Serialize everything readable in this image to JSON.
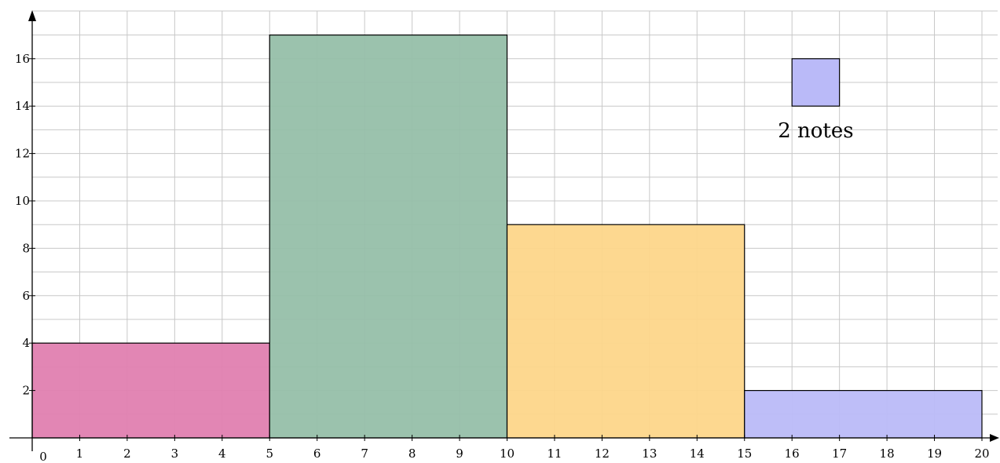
{
  "chart_data": {
    "type": "bar",
    "title": "",
    "xlabel": "",
    "ylabel": "",
    "xlim": [
      0,
      20
    ],
    "ylim": [
      0,
      17.5
    ],
    "grid": true,
    "x_ticks": [
      "0",
      "1",
      "2",
      "3",
      "4",
      "5",
      "6",
      "7",
      "8",
      "9",
      "10",
      "11",
      "12",
      "13",
      "14",
      "15",
      "16",
      "17",
      "18",
      "19",
      "20"
    ],
    "y_ticks": [
      "2",
      "4",
      "6",
      "8",
      "10",
      "12",
      "14",
      "16"
    ],
    "bars": [
      {
        "x_start": 0,
        "x_end": 5,
        "value": 4,
        "color": "#e07fb0"
      },
      {
        "x_start": 5,
        "x_end": 10,
        "value": 17,
        "color": "#96bfa9"
      },
      {
        "x_start": 10,
        "x_end": 15,
        "value": 9,
        "color": "#fdd68a"
      },
      {
        "x_start": 15,
        "x_end": 20,
        "value": 2,
        "color": "#babaf8"
      }
    ],
    "legend": {
      "label": "2 notes",
      "color": "#babaf8",
      "square_x": [
        16,
        17
      ],
      "square_y": [
        14,
        16
      ]
    }
  }
}
